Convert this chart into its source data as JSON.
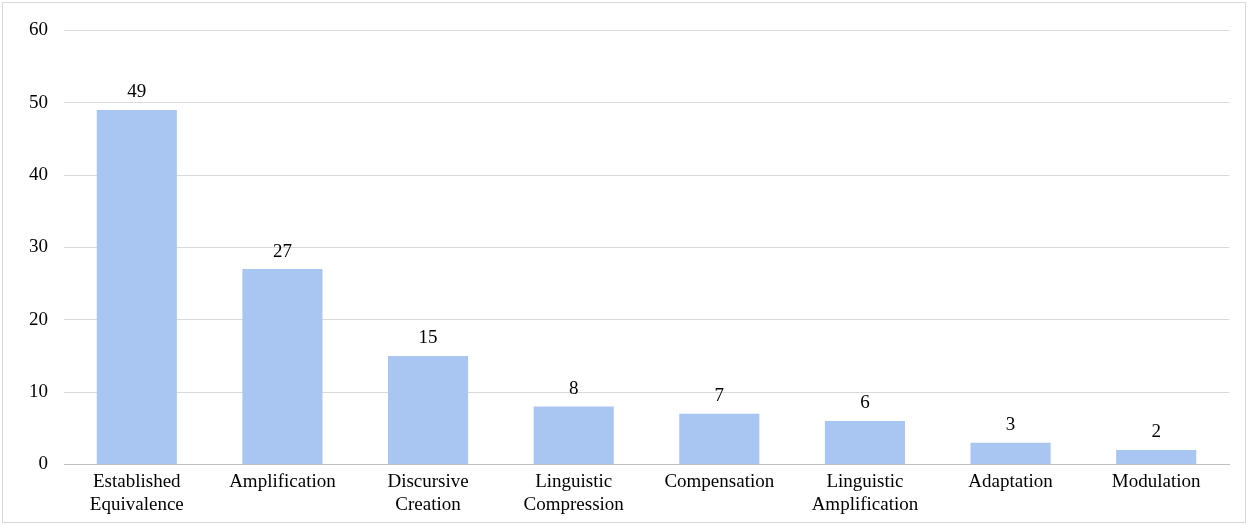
{
  "chart_data": {
    "type": "bar",
    "categories": [
      "Established Equivalence",
      "Amplification",
      "Discursive Creation",
      "Linguistic Compression",
      "Compensation",
      "Linguistic Amplification",
      "Adaptation",
      "Modulation"
    ],
    "values": [
      49,
      27,
      15,
      8,
      7,
      6,
      3,
      2
    ],
    "color": "#a9c5f2",
    "ylim": [
      0,
      60
    ],
    "yticks": [
      0,
      10,
      20,
      30,
      40,
      50,
      60
    ],
    "grid": "y",
    "data_labels": true
  }
}
